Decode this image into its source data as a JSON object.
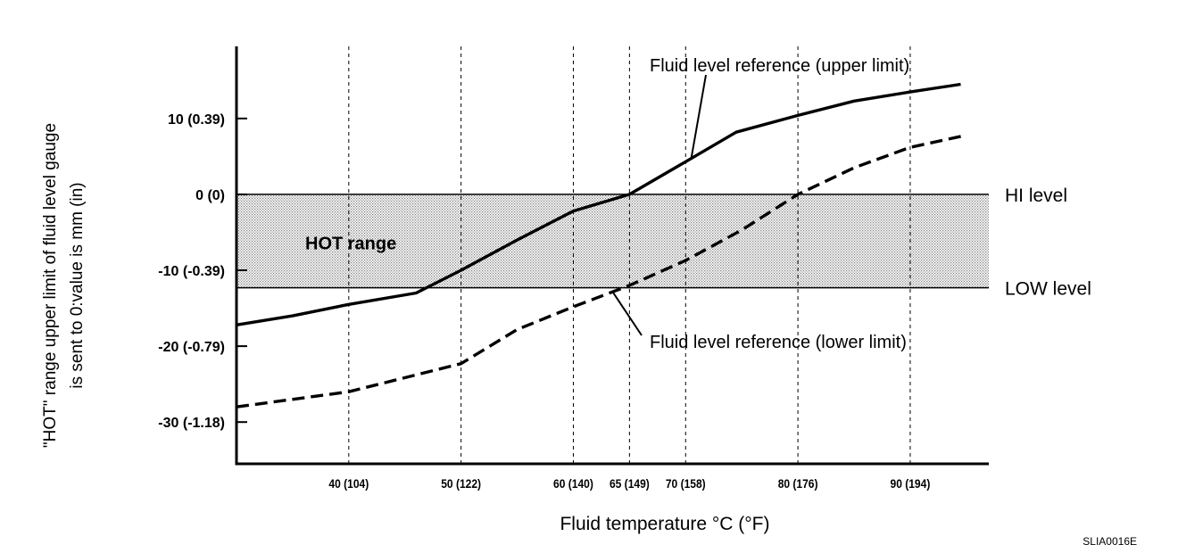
{
  "chart_data": {
    "type": "line",
    "xlabel": "Fluid temperature °C (°F)",
    "ylabel_line1": "\"HOT\" range upper limit of fluid level gauge",
    "ylabel_line2": "is sent to 0:value is mm (in)",
    "x_range": [
      30,
      97
    ],
    "y_range": [
      -35.5,
      19.5
    ],
    "x_ticks": [
      {
        "value": 40,
        "label": "40 (104)"
      },
      {
        "value": 50,
        "label": "50 (122)"
      },
      {
        "value": 60,
        "label": "60 (140)"
      },
      {
        "value": 65,
        "label": "65 (149)"
      },
      {
        "value": 70,
        "label": "70 (158)"
      },
      {
        "value": 80,
        "label": "80 (176)"
      },
      {
        "value": 90,
        "label": "90 (194)"
      }
    ],
    "y_ticks": [
      {
        "value": 10,
        "label": "10 (0.39)"
      },
      {
        "value": 0,
        "label": "0 (0)"
      },
      {
        "value": -10,
        "label": "-10 (-0.39)"
      },
      {
        "value": -20,
        "label": "-20 (-0.79)"
      },
      {
        "value": -30,
        "label": "-30 (-1.18)"
      }
    ],
    "hot_range": {
      "label": "HOT range",
      "from": -12.3,
      "to": 0
    },
    "levels": [
      {
        "name": "HI level",
        "value": 0
      },
      {
        "name": "LOW level",
        "value": -12.3
      }
    ],
    "series": [
      {
        "name": "Fluid level reference (upper limit)",
        "style": "solid",
        "x": [
          30,
          35,
          40,
          46,
          50,
          55,
          60,
          65,
          70,
          74.5,
          80,
          85,
          90,
          94.5
        ],
        "y": [
          -17.2,
          -16,
          -14.5,
          -13,
          -10,
          -6,
          -2.2,
          0,
          4.3,
          8.2,
          10.4,
          12.3,
          13.5,
          14.5
        ]
      },
      {
        "name": "Fluid level reference (lower limit)",
        "style": "dashed",
        "x": [
          30,
          40,
          50,
          55,
          60,
          65,
          70,
          75,
          80,
          85,
          90,
          95
        ],
        "y": [
          -28,
          -26,
          -22.3,
          -17.8,
          -14.8,
          -12,
          -8.7,
          -4.7,
          0,
          3.5,
          6.2,
          7.8
        ]
      }
    ],
    "annotations": [
      {
        "text": "Fluid level reference (upper limit)",
        "series": 0,
        "point_x": 70.5
      },
      {
        "text": "Fluid level reference (lower limit)",
        "series": 1,
        "point_x": 63.5
      }
    ]
  },
  "figure_code": "SLIA0016E"
}
